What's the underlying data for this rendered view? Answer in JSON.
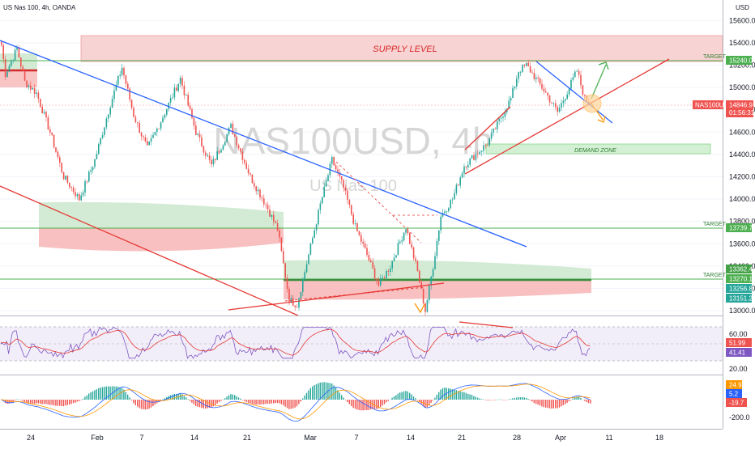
{
  "header": {
    "symbol_title": "US Nas 100, 4h, OANDA",
    "currency": "USD"
  },
  "watermark": {
    "ticker": "NAS100USD, 4h",
    "name": "US Nas 100"
  },
  "annotations": {
    "supply": "SUPPLY LEVEL",
    "demand": "DEMAND ZONE",
    "target": "TARGET"
  },
  "price_labels": {
    "t1": "15240.0",
    "sym": "NAS100USD",
    "last": "14846.9",
    "countdown": "01:56:31",
    "t2": "13739.7",
    "l1": "13362.4",
    "t3": "13270.1",
    "l3": "13256.8",
    "l4": "13151.2"
  },
  "rsi_labels": {
    "a": "51.99",
    "b": "41.41"
  },
  "macd_labels": {
    "a": "24.9",
    "b": "5.2",
    "c": "-19.7"
  },
  "colors": {
    "up": "#26a69a",
    "down": "#ef5350",
    "blue_line": "#2962ff",
    "red_line": "#e53935",
    "green_line": "#4caf50",
    "rsi": "#7e57c2",
    "supply": "#f8c9c9"
  },
  "chart_data": {
    "type": "candlestick",
    "title": "US Nas 100, 4h, OANDA",
    "y_axis": {
      "ticks": [
        15600,
        15400,
        15200,
        15000,
        14800,
        14600,
        14400,
        14200,
        14000,
        13800,
        13600,
        13400,
        13200,
        13000
      ],
      "range": [
        12900,
        15720
      ]
    },
    "x_axis": {
      "ticks": [
        "24",
        "Feb",
        "7",
        "14",
        "21",
        "Mar",
        "7",
        "14",
        "21",
        "28",
        "Apr",
        "11",
        "18"
      ]
    },
    "path": [
      [
        0,
        15380
      ],
      [
        2,
        15120
      ],
      [
        8,
        15350
      ],
      [
        12,
        15050
      ],
      [
        18,
        14950
      ],
      [
        25,
        14600
      ],
      [
        32,
        14200
      ],
      [
        40,
        14000
      ],
      [
        48,
        14350
      ],
      [
        56,
        14850
      ],
      [
        62,
        15180
      ],
      [
        68,
        14750
      ],
      [
        75,
        14450
      ],
      [
        82,
        14700
      ],
      [
        92,
        15080
      ],
      [
        100,
        14600
      ],
      [
        108,
        14300
      ],
      [
        118,
        14650
      ],
      [
        128,
        14200
      ],
      [
        136,
        13950
      ],
      [
        142,
        13730
      ],
      [
        148,
        13100
      ],
      [
        152,
        13050
      ],
      [
        158,
        13500
      ],
      [
        164,
        13950
      ],
      [
        170,
        14350
      ],
      [
        176,
        14100
      ],
      [
        182,
        13750
      ],
      [
        188,
        13500
      ],
      [
        194,
        13230
      ],
      [
        200,
        13400
      ],
      [
        208,
        13750
      ],
      [
        214,
        13350
      ],
      [
        218,
        13000
      ],
      [
        222,
        13400
      ],
      [
        226,
        13850
      ],
      [
        232,
        14000
      ],
      [
        238,
        14300
      ],
      [
        244,
        14400
      ],
      [
        250,
        14500
      ],
      [
        256,
        14700
      ],
      [
        262,
        14900
      ],
      [
        266,
        15150
      ],
      [
        270,
        15200
      ],
      [
        274,
        15100
      ],
      [
        280,
        14950
      ],
      [
        286,
        14780
      ],
      [
        292,
        15000
      ],
      [
        296,
        15150
      ],
      [
        300,
        14900
      ],
      [
        303,
        14847
      ]
    ],
    "levels": [
      {
        "name": "target",
        "value": 15240.0
      },
      {
        "name": "target",
        "value": 13739.7
      },
      {
        "name": "target",
        "value": 13270.1
      }
    ],
    "zones": [
      {
        "name": "supply level",
        "from": 15240,
        "to": 15480
      },
      {
        "name": "demand zone",
        "from": 14520,
        "to": 14600
      }
    ],
    "last_price": 14846.9,
    "rsi": {
      "range": [
        0,
        100
      ],
      "bands": [
        30,
        70
      ],
      "values": [
        51.99,
        41.41
      ]
    },
    "macd": {
      "values": [
        24.9,
        5.2,
        -19.7
      ],
      "ticks": [
        -200.0
      ]
    }
  }
}
